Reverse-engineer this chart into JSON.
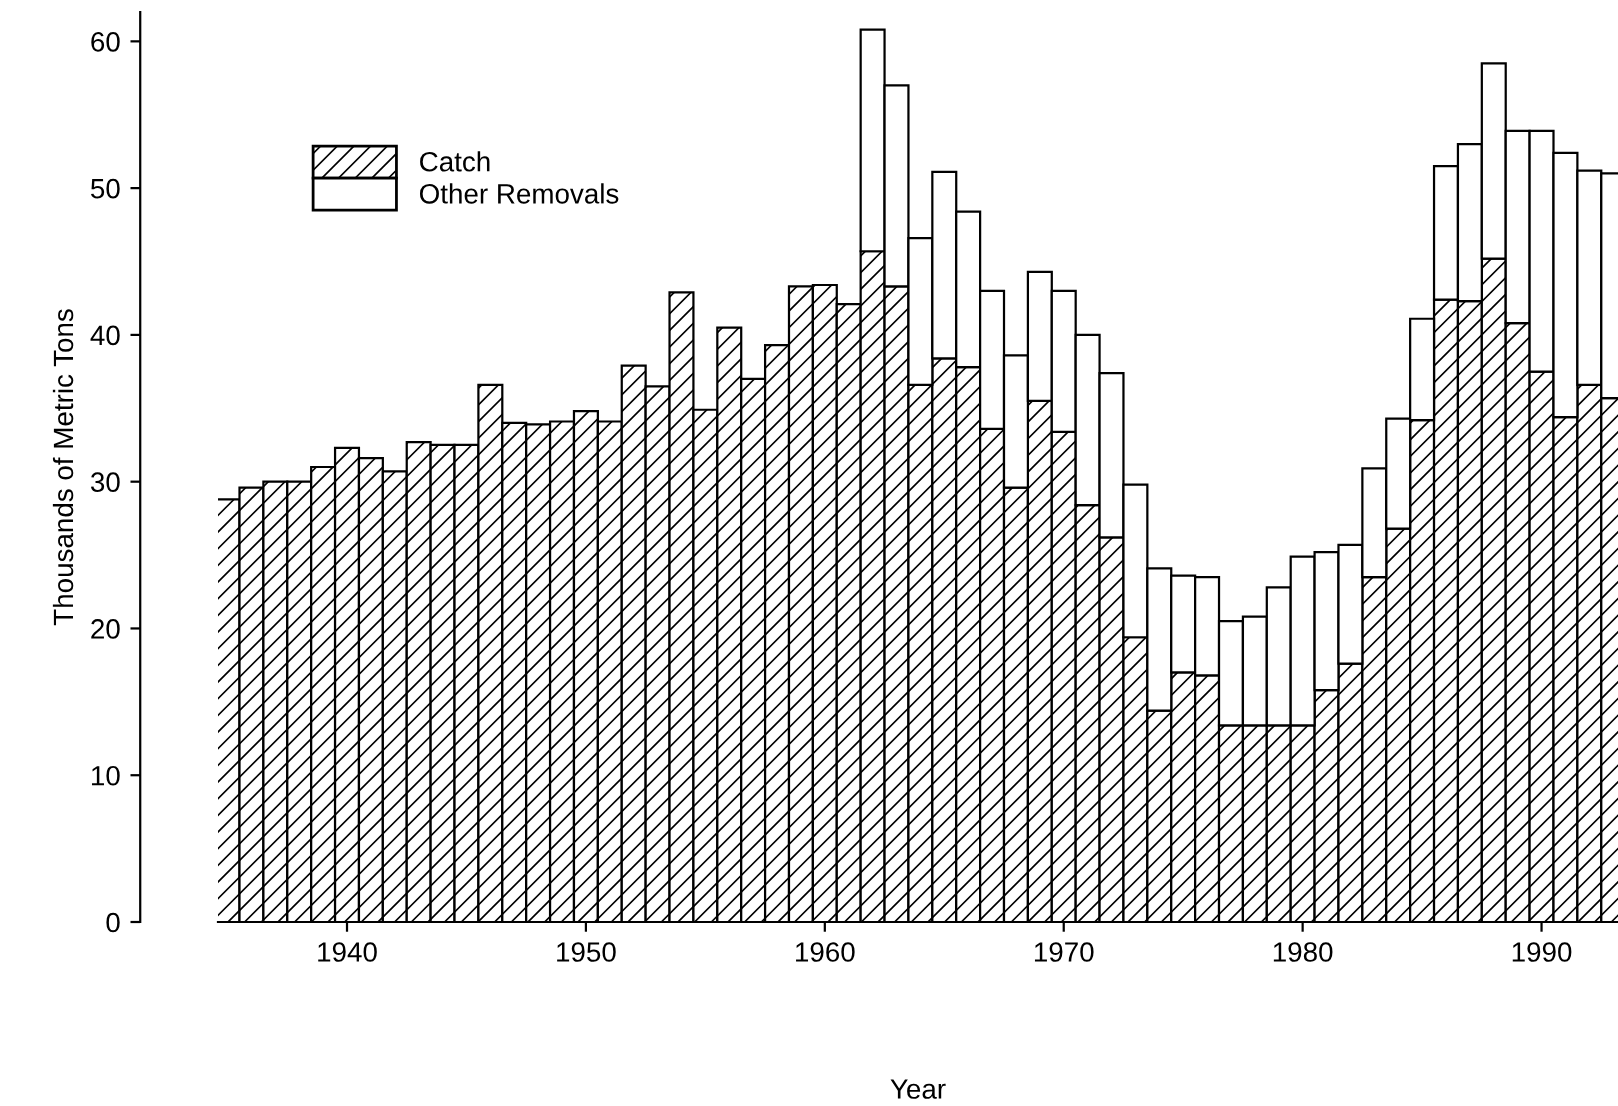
{
  "chart_data": {
    "type": "bar",
    "stacked": true,
    "xlabel": "Year",
    "ylabel": "Thousands of Metric Tons",
    "x": [
      1935,
      1936,
      1937,
      1938,
      1939,
      1940,
      1941,
      1942,
      1943,
      1944,
      1945,
      1946,
      1947,
      1948,
      1949,
      1950,
      1951,
      1952,
      1953,
      1954,
      1955,
      1956,
      1957,
      1958,
      1959,
      1960,
      1961,
      1962,
      1963,
      1964,
      1965,
      1966,
      1967,
      1968,
      1969,
      1970,
      1971,
      1972,
      1973,
      1974,
      1975,
      1976,
      1977,
      1978,
      1979,
      1980,
      1981,
      1982,
      1983,
      1984,
      1985,
      1986,
      1987,
      1988,
      1989,
      1990,
      1991,
      1992,
      1993
    ],
    "series": [
      {
        "name": "Catch",
        "color": "#000000",
        "values": [
          28.8,
          29.6,
          30.0,
          30.0,
          31.0,
          32.3,
          31.6,
          30.7,
          32.7,
          32.5,
          32.5,
          36.6,
          34.0,
          33.9,
          34.1,
          34.8,
          34.1,
          37.9,
          36.5,
          42.9,
          34.9,
          40.5,
          37.0,
          39.3,
          43.3,
          43.4,
          42.1,
          45.7,
          43.3,
          36.6,
          38.4,
          37.8,
          33.6,
          29.6,
          35.5,
          33.4,
          28.4,
          26.2,
          19.4,
          14.4,
          17.0,
          16.8,
          13.4,
          13.4,
          13.4,
          13.4,
          15.8,
          17.6,
          23.5,
          26.8,
          34.2,
          42.4,
          42.3,
          45.2,
          40.8,
          37.5,
          34.4,
          36.6,
          35.7
        ]
      },
      {
        "name": "Other Removals",
        "color": "#ffffff",
        "values": [
          null,
          null,
          null,
          null,
          null,
          null,
          null,
          null,
          null,
          null,
          null,
          null,
          null,
          null,
          null,
          null,
          null,
          null,
          null,
          null,
          null,
          null,
          null,
          null,
          null,
          null,
          null,
          15.1,
          13.7,
          10.0,
          12.7,
          10.6,
          9.4,
          9.0,
          8.8,
          9.6,
          11.6,
          11.2,
          10.4,
          9.7,
          6.6,
          6.7,
          7.1,
          7.4,
          9.4,
          11.5,
          9.4,
          8.1,
          7.4,
          7.5,
          6.9,
          9.1,
          10.7,
          13.3,
          13.1,
          16.4,
          18.0,
          14.6,
          15.3
        ]
      }
    ],
    "xlim": [
      1934.6,
      1993.2
    ],
    "xticks": [
      1940,
      1950,
      1960,
      1970,
      1980,
      1990
    ],
    "ylim": [
      0,
      62
    ],
    "yticks": [
      0,
      10,
      20,
      30,
      40,
      50,
      60
    ],
    "grid": false,
    "legend": "top left"
  }
}
